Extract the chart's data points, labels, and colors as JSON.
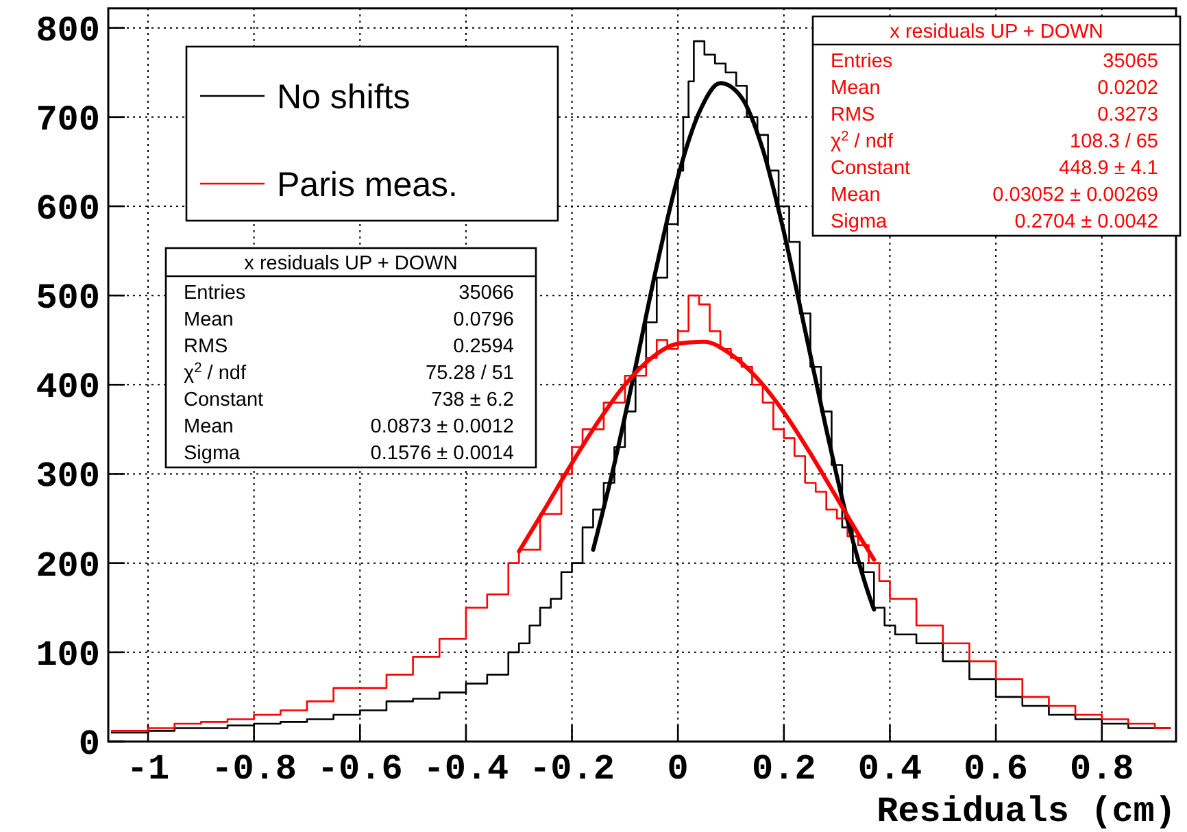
{
  "chart_data": {
    "type": "step",
    "xlabel": "Residuals (cm)",
    "xlim": [
      -1.075,
      0.94
    ],
    "ylim": [
      0,
      822
    ],
    "xticks": [
      -1,
      -0.8,
      -0.6,
      -0.4,
      -0.2,
      0,
      0.2,
      0.4,
      0.6,
      0.8
    ],
    "yticks": [
      0,
      100,
      200,
      300,
      400,
      500,
      600,
      700,
      800
    ],
    "grid": true,
    "legend": "top left",
    "series": [
      {
        "name": "No shifts",
        "color": "#000000",
        "x": [
          -1.07,
          -1.0,
          -0.95,
          -0.9,
          -0.85,
          -0.8,
          -0.75,
          -0.7,
          -0.65,
          -0.6,
          -0.55,
          -0.5,
          -0.45,
          -0.4,
          -0.36,
          -0.32,
          -0.3,
          -0.28,
          -0.26,
          -0.24,
          -0.22,
          -0.2,
          -0.18,
          -0.16,
          -0.14,
          -0.12,
          -0.1,
          -0.08,
          -0.06,
          -0.04,
          -0.02,
          0,
          0.01,
          0.02,
          0.03,
          0.05,
          0.07,
          0.09,
          0.11,
          0.13,
          0.15,
          0.17,
          0.19,
          0.21,
          0.23,
          0.25,
          0.27,
          0.29,
          0.31,
          0.33,
          0.35,
          0.37,
          0.39,
          0.41,
          0.45,
          0.5,
          0.55,
          0.6,
          0.65,
          0.7,
          0.75,
          0.8,
          0.85,
          0.9,
          0.93
        ],
        "values": [
          10,
          12,
          15,
          15,
          18,
          20,
          22,
          25,
          30,
          35,
          45,
          48,
          55,
          65,
          75,
          100,
          110,
          130,
          150,
          160,
          190,
          200,
          240,
          260,
          290,
          330,
          370,
          420,
          470,
          520,
          580,
          640,
          700,
          740,
          785,
          770,
          760,
          750,
          735,
          700,
          680,
          640,
          600,
          560,
          480,
          420,
          370,
          310,
          240,
          200,
          190,
          150,
          130,
          120,
          110,
          90,
          70,
          50,
          40,
          30,
          25,
          20,
          15,
          15,
          15
        ]
      },
      {
        "name": "Paris meas.",
        "color": "#ff0000",
        "x": [
          -1.07,
          -1.0,
          -0.95,
          -0.9,
          -0.85,
          -0.8,
          -0.75,
          -0.7,
          -0.65,
          -0.6,
          -0.55,
          -0.5,
          -0.45,
          -0.4,
          -0.36,
          -0.32,
          -0.3,
          -0.26,
          -0.22,
          -0.2,
          -0.18,
          -0.14,
          -0.1,
          -0.06,
          -0.04,
          -0.02,
          0,
          0.02,
          0.04,
          0.06,
          0.08,
          0.1,
          0.12,
          0.14,
          0.16,
          0.18,
          0.2,
          0.22,
          0.24,
          0.26,
          0.28,
          0.3,
          0.32,
          0.34,
          0.36,
          0.38,
          0.4,
          0.45,
          0.5,
          0.55,
          0.6,
          0.65,
          0.7,
          0.75,
          0.8,
          0.85,
          0.9,
          0.93
        ],
        "values": [
          12,
          15,
          20,
          22,
          25,
          30,
          35,
          45,
          60,
          60,
          75,
          95,
          115,
          150,
          165,
          200,
          215,
          255,
          300,
          330,
          350,
          380,
          410,
          430,
          450,
          440,
          460,
          500,
          490,
          460,
          440,
          430,
          420,
          400,
          380,
          350,
          340,
          320,
          290,
          280,
          260,
          250,
          230,
          220,
          200,
          180,
          160,
          130,
          110,
          90,
          70,
          50,
          40,
          30,
          25,
          20,
          15,
          15
        ]
      },
      {
        "type": "line",
        "color": "#000000",
        "x": [
          -0.16,
          -0.12,
          -0.08,
          -0.04,
          0,
          0.04,
          0.08,
          0.12,
          0.16,
          0.2,
          0.24,
          0.28,
          0.32,
          0.36,
          0.37
        ],
        "values": [
          215,
          311,
          420,
          533,
          633,
          705,
          738,
          722,
          664,
          571,
          461,
          350,
          248,
          165,
          148
        ]
      },
      {
        "type": "line",
        "color": "#ff0000",
        "x": [
          -0.3,
          -0.25,
          -0.2,
          -0.15,
          -0.1,
          -0.05,
          0,
          0.05,
          0.1,
          0.15,
          0.2,
          0.25,
          0.3,
          0.35,
          0.37
        ],
        "values": [
          213,
          262,
          312,
          359,
          400,
          430,
          446,
          448,
          434,
          407,
          369,
          323,
          273,
          223,
          204
        ]
      }
    ],
    "annotations": [
      "x residuals UP + DOWN\nEntries\t35066\nMean\t0.0796\nRMS\t0.2594\nχ$^{2}$ / ndf\t75.28 / 51\nConstant\t738 ± 6.2\nMean\t0.0873 ± 0.0012\nSigma\t0.1576 ± 0.0014",
      "x residuals UP + DOWN\nEntries\t35065\nMean\t0.0202\nRMS\t0.3273\nχ$^{2}$ / ndf\t108.3 / 65\nConstant\t448.9 ± 4.1\nMean\t0.03052 ± 0.00269\nSigma\t0.2704 ± 0.0042"
    ]
  }
}
